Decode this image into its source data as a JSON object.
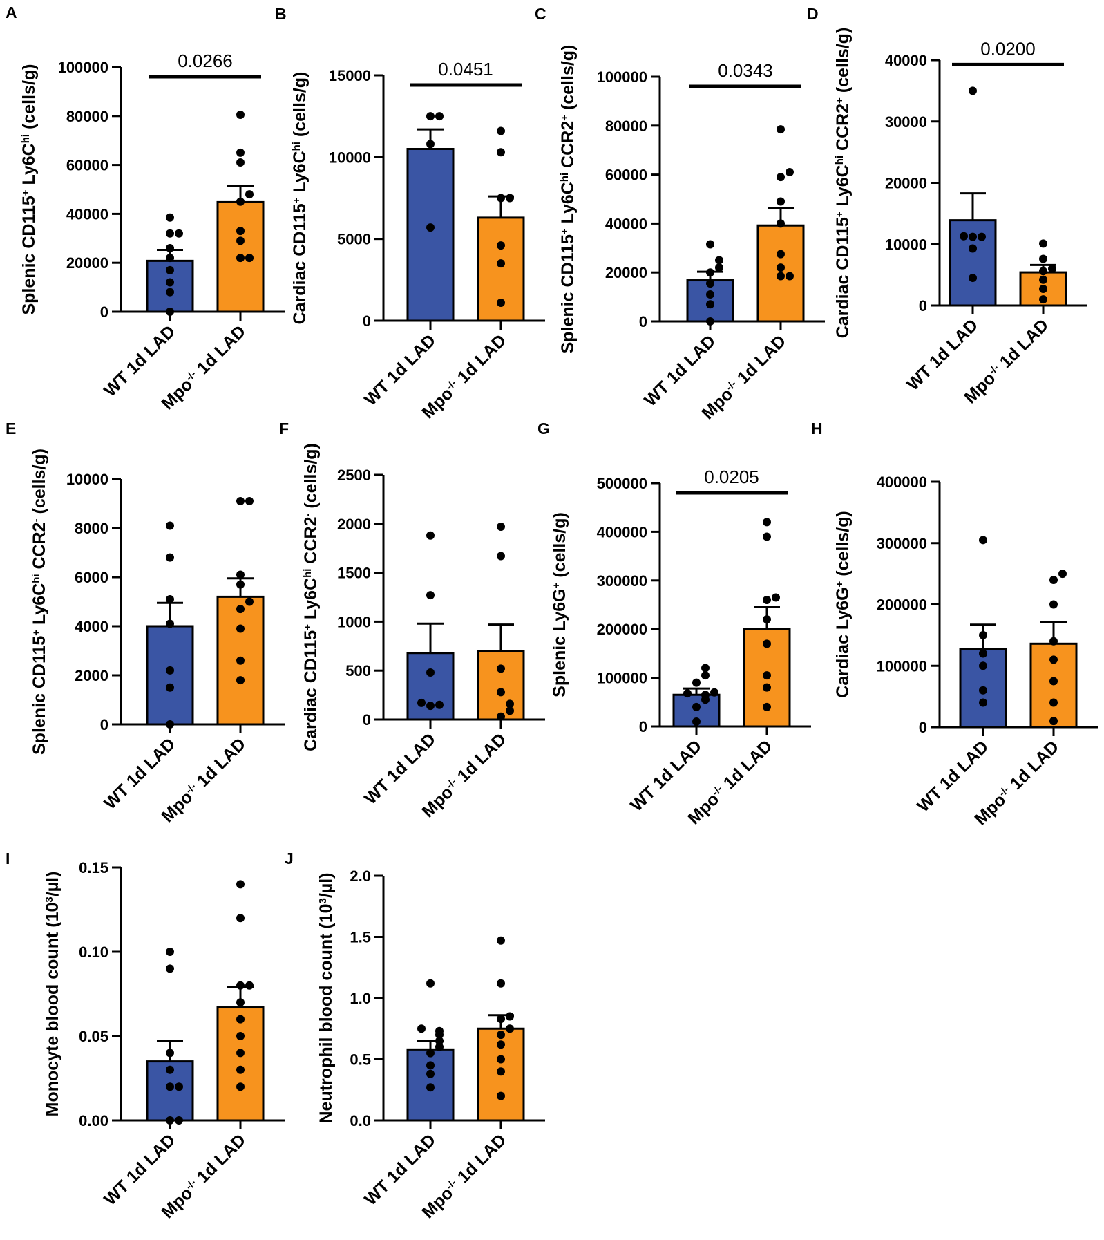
{
  "colors": {
    "wt": "#3a55a4",
    "ko": "#f7931e",
    "axis": "#000000"
  },
  "chart_data": [
    {
      "panel": "A",
      "type": "bar",
      "ylabel_parts": [
        [
          "Splenic CD115",
          "n"
        ],
        [
          "+",
          "sup"
        ],
        [
          " Ly6C",
          "n"
        ],
        [
          "hi",
          "sup"
        ],
        [
          " (cells/g)",
          "n"
        ]
      ],
      "categories": [
        [
          [
            "WT 1d LAD",
            "n"
          ]
        ],
        [
          [
            "Mpo",
            "n"
          ],
          [
            "-/-",
            "sup"
          ],
          [
            " 1d LAD",
            "n"
          ]
        ]
      ],
      "yticks": [
        0,
        20000,
        40000,
        60000,
        80000,
        100000
      ],
      "ytick_labels": [
        "0",
        "20000",
        "40000",
        "60000",
        "80000",
        "100000"
      ],
      "ylim": [
        0,
        100000
      ],
      "series": [
        {
          "name": "WT 1d LAD",
          "mean": 20800,
          "sem": 4500,
          "points": [
            0,
            8000,
            12000,
            17000,
            22000,
            26000,
            32000,
            32000,
            38500
          ]
        },
        {
          "name": "Mpo-/- 1d LAD",
          "mean": 44800,
          "sem": 6500,
          "points": [
            22000,
            22000,
            29000,
            33000,
            45000,
            48000,
            61000,
            65000,
            80500
          ]
        }
      ],
      "pvalue": "0.0266"
    },
    {
      "panel": "B",
      "type": "bar",
      "ylabel_parts": [
        [
          "Cardiac CD115",
          "n"
        ],
        [
          "+",
          "sup"
        ],
        [
          " Ly6C",
          "n"
        ],
        [
          "hi",
          "sup"
        ],
        [
          " (cells/g)",
          "n"
        ]
      ],
      "categories": [
        [
          [
            "WT 1d LAD",
            "n"
          ]
        ],
        [
          [
            "Mpo",
            "n"
          ],
          [
            "-/-",
            "sup"
          ],
          [
            " 1d LAD",
            "n"
          ]
        ]
      ],
      "yticks": [
        0,
        5000,
        10000,
        15000
      ],
      "ytick_labels": [
        "0",
        "5000",
        "10000",
        "15000"
      ],
      "ylim": [
        0,
        15000
      ],
      "series": [
        {
          "name": "WT 1d LAD",
          "mean": 10500,
          "sem": 1200,
          "points": [
            5700,
            10800,
            12500,
            12500
          ]
        },
        {
          "name": "Mpo-/- 1d LAD",
          "mean": 6300,
          "sem": 1300,
          "points": [
            1100,
            3500,
            4600,
            7500,
            7500,
            10300,
            11600
          ]
        }
      ],
      "pvalue": "0.0451"
    },
    {
      "panel": "C",
      "type": "bar",
      "ylabel_parts": [
        [
          "Splenic CD115",
          "n"
        ],
        [
          "+",
          "sup"
        ],
        [
          " Ly6C",
          "n"
        ],
        [
          "hi",
          "sup"
        ],
        [
          " CCR2",
          "n"
        ],
        [
          "+",
          "sup"
        ],
        [
          " (cells/g)",
          "n"
        ]
      ],
      "categories": [
        [
          [
            "WT 1d LAD",
            "n"
          ]
        ],
        [
          [
            "Mpo",
            "n"
          ],
          [
            "-/-",
            "sup"
          ],
          [
            " 1d LAD",
            "n"
          ]
        ]
      ],
      "yticks": [
        0,
        20000,
        40000,
        60000,
        80000,
        100000
      ],
      "ytick_labels": [
        "0",
        "20000",
        "40000",
        "60000",
        "80000",
        "100000"
      ],
      "ylim": [
        0,
        100000
      ],
      "series": [
        {
          "name": "WT 1d LAD",
          "mean": 16800,
          "sem": 3500,
          "points": [
            0,
            7000,
            11000,
            15500,
            20000,
            22000,
            25000,
            31500
          ]
        },
        {
          "name": "Mpo-/- 1d LAD",
          "mean": 39200,
          "sem": 7000,
          "points": [
            18500,
            18500,
            22000,
            27500,
            40000,
            49000,
            59000,
            61000,
            78500
          ]
        }
      ],
      "pvalue": "0.0343"
    },
    {
      "panel": "D",
      "type": "bar",
      "ylabel_parts": [
        [
          "Cardiac CD115",
          "n"
        ],
        [
          "+",
          "sup"
        ],
        [
          " Ly6C",
          "n"
        ],
        [
          "hi",
          "sup"
        ],
        [
          " CCR2",
          "n"
        ],
        [
          "+",
          "sup"
        ],
        [
          " (cells/g)",
          "n"
        ]
      ],
      "categories": [
        [
          [
            "WT 1d LAD",
            "n"
          ]
        ],
        [
          [
            "Mpo",
            "n"
          ],
          [
            "-/-",
            "sup"
          ],
          [
            " 1d LAD",
            "n"
          ]
        ]
      ],
      "yticks": [
        0,
        10000,
        20000,
        30000,
        40000
      ],
      "ytick_labels": [
        "0",
        "10000",
        "20000",
        "30000",
        "40000"
      ],
      "ylim": [
        0,
        40000
      ],
      "series": [
        {
          "name": "WT 1d LAD",
          "mean": 13900,
          "sem": 4400,
          "points": [
            4500,
            9300,
            11200,
            11200,
            11300,
            35000
          ]
        },
        {
          "name": "Mpo-/- 1d LAD",
          "mean": 5400,
          "sem": 1200,
          "points": [
            1000,
            2700,
            4200,
            5600,
            6000,
            7600,
            10100
          ]
        }
      ],
      "pvalue": "0.0200"
    },
    {
      "panel": "E",
      "type": "bar",
      "ylabel_parts": [
        [
          "Splenic CD115",
          "n"
        ],
        [
          "+",
          "sup"
        ],
        [
          " Ly6C",
          "n"
        ],
        [
          "hi",
          "sup"
        ],
        [
          " CCR2",
          "n"
        ],
        [
          "-",
          "sup"
        ],
        [
          " (cells/g)",
          "n"
        ]
      ],
      "categories": [
        [
          [
            "WT 1d LAD",
            "n"
          ]
        ],
        [
          [
            "Mpo",
            "n"
          ],
          [
            "-/-",
            "sup"
          ],
          [
            " 1d LAD",
            "n"
          ]
        ]
      ],
      "yticks": [
        0,
        2000,
        4000,
        6000,
        8000,
        10000
      ],
      "ytick_labels": [
        "0",
        "2000",
        "4000",
        "6000",
        "8000",
        "10000"
      ],
      "ylim": [
        0,
        10000
      ],
      "series": [
        {
          "name": "WT 1d LAD",
          "mean": 4000,
          "sem": 950,
          "points": [
            0,
            1500,
            2200,
            4100,
            5100,
            6800,
            8100
          ]
        },
        {
          "name": "Mpo-/- 1d LAD",
          "mean": 5200,
          "sem": 750,
          "points": [
            1800,
            2600,
            3900,
            4700,
            5000,
            5700,
            6100,
            9100,
            9100
          ]
        }
      ],
      "pvalue": null
    },
    {
      "panel": "F",
      "type": "bar",
      "ylabel_parts": [
        [
          "Cardiac CD115",
          "n"
        ],
        [
          "+",
          "sup"
        ],
        [
          " Ly6C",
          "n"
        ],
        [
          "hi",
          "sup"
        ],
        [
          " CCR2",
          "n"
        ],
        [
          "-",
          "sup"
        ],
        [
          " (cells/g)",
          "n"
        ]
      ],
      "categories": [
        [
          [
            "WT 1d LAD",
            "n"
          ]
        ],
        [
          [
            "Mpo",
            "n"
          ],
          [
            "-/-",
            "sup"
          ],
          [
            " 1d LAD",
            "n"
          ]
        ]
      ],
      "yticks": [
        0,
        500,
        1000,
        1500,
        2000,
        2500
      ],
      "ytick_labels": [
        "0",
        "500",
        "1000",
        "1500",
        "2000",
        "2500"
      ],
      "ylim": [
        0,
        2500
      ],
      "series": [
        {
          "name": "WT 1d LAD",
          "mean": 680,
          "sem": 300,
          "points": [
            140,
            150,
            170,
            480,
            1270,
            1880
          ]
        },
        {
          "name": "Mpo-/- 1d LAD",
          "mean": 700,
          "sem": 270,
          "points": [
            30,
            90,
            160,
            280,
            520,
            1670,
            1970
          ]
        }
      ],
      "pvalue": null
    },
    {
      "panel": "G",
      "type": "bar",
      "ylabel_parts": [
        [
          "Splenic Ly6G",
          "n"
        ],
        [
          "+",
          "sup"
        ],
        [
          " (cells/g)",
          "n"
        ]
      ],
      "categories": [
        [
          [
            "WT 1d LAD",
            "n"
          ]
        ],
        [
          [
            "Mpo",
            "n"
          ],
          [
            "-/-",
            "sup"
          ],
          [
            " 1d LAD",
            "n"
          ]
        ]
      ],
      "yticks": [
        0,
        100000,
        200000,
        300000,
        400000,
        500000
      ],
      "ytick_labels": [
        "0",
        "100000",
        "200000",
        "300000",
        "400000",
        "500000"
      ],
      "ylim": [
        0,
        500000
      ],
      "series": [
        {
          "name": "WT 1d LAD",
          "mean": 65000,
          "sem": 13000,
          "points": [
            10000,
            40000,
            55000,
            65000,
            68000,
            70000,
            90000,
            105000,
            120000
          ]
        },
        {
          "name": "Mpo-/- 1d LAD",
          "mean": 200000,
          "sem": 45000,
          "points": [
            40000,
            80000,
            105000,
            170000,
            220000,
            260000,
            265000,
            390000,
            420000
          ]
        }
      ],
      "pvalue": "0.0205"
    },
    {
      "panel": "H",
      "type": "bar",
      "ylabel_parts": [
        [
          "Cardiac Ly6G",
          "n"
        ],
        [
          "+",
          "sup"
        ],
        [
          " (cells/g)",
          "n"
        ]
      ],
      "categories": [
        [
          [
            "WT 1d LAD",
            "n"
          ]
        ],
        [
          [
            "Mpo",
            "n"
          ],
          [
            "-/-",
            "sup"
          ],
          [
            " 1d LAD",
            "n"
          ]
        ]
      ],
      "yticks": [
        0,
        100000,
        200000,
        300000,
        400000
      ],
      "ytick_labels": [
        "0",
        "100000",
        "200000",
        "300000",
        "400000"
      ],
      "ylim": [
        0,
        400000
      ],
      "series": [
        {
          "name": "WT 1d LAD",
          "mean": 127000,
          "sem": 40000,
          "points": [
            40000,
            60000,
            100000,
            120000,
            150000,
            305000
          ]
        },
        {
          "name": "Mpo-/- 1d LAD",
          "mean": 136000,
          "sem": 35000,
          "points": [
            10000,
            40000,
            75000,
            110000,
            140000,
            200000,
            240000,
            250000
          ]
        }
      ],
      "pvalue": null
    },
    {
      "panel": "I",
      "type": "bar",
      "ylabel_parts": [
        [
          "Monocyte blood count (10",
          "n"
        ],
        [
          "3",
          "sup"
        ],
        [
          "/µl)",
          "n"
        ]
      ],
      "categories": [
        [
          [
            "WT 1d LAD",
            "n"
          ]
        ],
        [
          [
            "Mpo",
            "n"
          ],
          [
            "-/-",
            "sup"
          ],
          [
            " 1d LAD",
            "n"
          ]
        ]
      ],
      "yticks": [
        0,
        0.05,
        0.1,
        0.15
      ],
      "ytick_labels": [
        "0.00",
        "0.05",
        "0.10",
        "0.15"
      ],
      "ylim": [
        0,
        0.15
      ],
      "series": [
        {
          "name": "WT 1d LAD",
          "mean": 0.035,
          "sem": 0.012,
          "points": [
            0,
            0,
            0.02,
            0.02,
            0.03,
            0.04,
            0.09,
            0.1
          ]
        },
        {
          "name": "Mpo-/- 1d LAD",
          "mean": 0.067,
          "sem": 0.012,
          "points": [
            0.02,
            0.03,
            0.04,
            0.05,
            0.06,
            0.07,
            0.08,
            0.08,
            0.12,
            0.14
          ]
        }
      ],
      "pvalue": null
    },
    {
      "panel": "J",
      "type": "bar",
      "ylabel_parts": [
        [
          "Neutrophil blood count (10",
          "n"
        ],
        [
          "3",
          "sup"
        ],
        [
          "/µl)",
          "n"
        ]
      ],
      "categories": [
        [
          [
            "WT 1d LAD",
            "n"
          ]
        ],
        [
          [
            "Mpo",
            "n"
          ],
          [
            "-/-",
            "sup"
          ],
          [
            " 1d LAD",
            "n"
          ]
        ]
      ],
      "yticks": [
        0,
        0.5,
        1.0,
        1.5,
        2.0
      ],
      "ytick_labels": [
        "0.0",
        "0.5",
        "1.0",
        "1.5",
        "2.0"
      ],
      "ylim": [
        0,
        2.0
      ],
      "series": [
        {
          "name": "WT 1d LAD",
          "mean": 0.58,
          "sem": 0.07,
          "points": [
            0.27,
            0.38,
            0.45,
            0.55,
            0.6,
            0.65,
            0.7,
            0.73,
            0.75,
            1.12
          ]
        },
        {
          "name": "Mpo-/- 1d LAD",
          "mean": 0.75,
          "sem": 0.11,
          "points": [
            0.2,
            0.4,
            0.5,
            0.62,
            0.7,
            0.75,
            0.83,
            0.85,
            1.12,
            1.47
          ]
        }
      ],
      "pvalue": null
    }
  ]
}
